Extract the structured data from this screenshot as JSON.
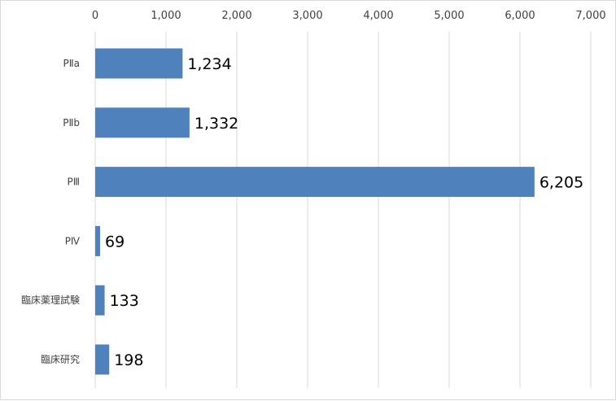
{
  "chart_data": {
    "type": "bar",
    "orientation": "horizontal",
    "categories": [
      "PⅡa",
      "PⅡb",
      "PⅢ",
      "PⅣ",
      "臨床薬理試験",
      "臨床研究"
    ],
    "values": [
      1234,
      1332,
      6205,
      69,
      133,
      198
    ],
    "value_labels": [
      "1,234",
      "1,332",
      "6,205",
      "69",
      "133",
      "198"
    ],
    "xlim": [
      0,
      7000
    ],
    "x_ticks": [
      0,
      1000,
      2000,
      3000,
      4000,
      5000,
      6000,
      7000
    ],
    "x_tick_labels": [
      "0",
      "1,000",
      "2,000",
      "3,000",
      "4,000",
      "5,000",
      "6,000",
      "7,000"
    ],
    "x_axis_position": "top",
    "grid": true,
    "legend": "none",
    "title": "",
    "xlabel": "",
    "ylabel": "",
    "bar_color": "#4f81bd",
    "grid_color": "#d9d9d9"
  }
}
